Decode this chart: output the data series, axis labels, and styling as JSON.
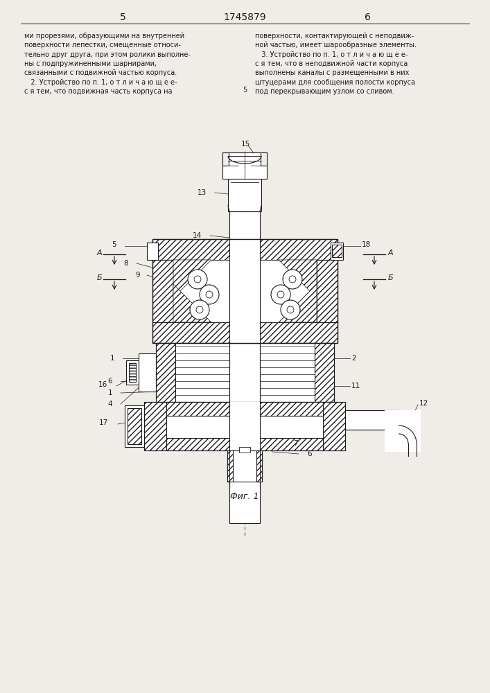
{
  "page_number_left": "5",
  "page_number_center": "1745879",
  "page_number_right": "6",
  "text_left": "ми прорезями, образующими на внутренней\nповерхности лепестки, смещенные относи-\nтельно друг друга, при этом ролики выполне-\nны с подпружиненными шарнирами,\nсвязанными с подвижной частью корпуса.\n   2. Устройство по п. 1, о т л и ч а ю щ е е-\nс я тем, что подвижная часть корпуса на",
  "text_right": "поверхности, контактирующей с неподвиж-\nной частью, имеет шарообразные элементы.\n   3. Устройство по п. 1, о т л и ч а ю щ е е-\nс я тем, что в неподвижной части корпуса\nвыполнены каналы с размещенными в них\nштуцерами для сообщения полости корпуса\nпод перекрывающим узлом со сливом.",
  "fig_caption": "Фиг. 1",
  "background_color": "#f0ede8",
  "line_color": "#1a1a1a"
}
